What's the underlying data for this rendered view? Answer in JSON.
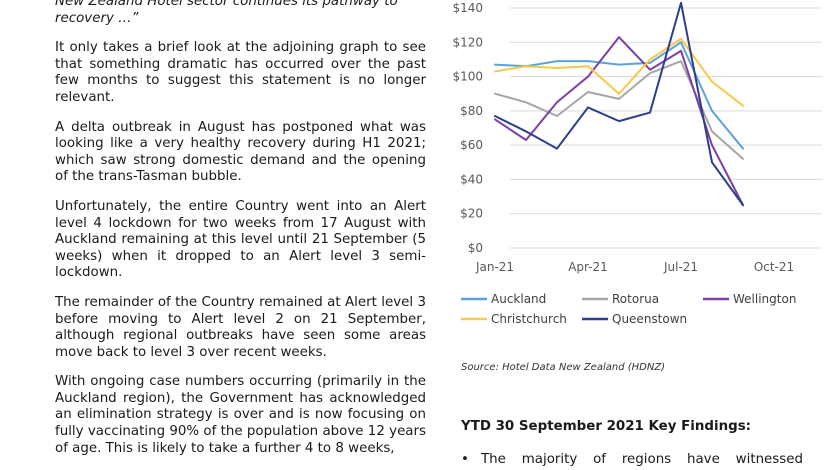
{
  "text": {
    "quote_tail": "New Zealand Hotel sector continues its pathway to recovery …”",
    "p1": "It only takes a brief look at the adjoining graph to see that something dramatic has occurred over the past few months to suggest this statement is no longer relevant.",
    "p2": "A delta outbreak in August has postponed what was looking like a very healthy recovery during H1 2021; which saw strong domestic demand and the opening of the trans-Tasman bubble.",
    "p3": "Unfortunately, the entire Country went into an Alert level 4 lockdown for two weeks from 17 August with Auckland remaining at this level until 21 September (5 weeks)  when it dropped to an Alert level 3 semi-lockdown.",
    "p4": "The remainder of the Country remained at Alert level 3 before moving to Alert level 2 on 21 September, although regional outbreaks have seen some areas move back to level 3 over recent weeks.",
    "p5": "With ongoing case numbers occurring (primarily in the Auckland region), the Government has acknowledged an elimination strategy is over and is now focusing on fully vaccinating 90% of the population above 12 years of age.  This is likely to take a further 4 to 8 weeks,",
    "source": "Source: Hotel Data New Zealand (HDNZ)",
    "findings_title": "YTD 30 September 2021 Key Findings:",
    "bullet1": "The  majority  of  regions  have  witnessed",
    "bullet_symbol": "•"
  },
  "chart_data": {
    "type": "line",
    "title": "",
    "xlabel": "",
    "ylabel": "",
    "ylim": [
      0,
      140
    ],
    "yticks": [
      0,
      20,
      40,
      60,
      80,
      100,
      120,
      140
    ],
    "ytick_labels": [
      "$0",
      "$20",
      "$40",
      "$60",
      "$80",
      "$100",
      "$120",
      "$140"
    ],
    "x": [
      "Jan-21",
      "Feb-21",
      "Mar-21",
      "Apr-21",
      "May-21",
      "Jun-21",
      "Jul-21",
      "Aug-21",
      "Sep-21"
    ],
    "xtick_labels": [
      {
        "label": "Jan-21",
        "index": 0
      },
      {
        "label": "Apr-21",
        "index": 3
      },
      {
        "label": "Jul-21",
        "index": 6
      },
      {
        "label": "Oct-21",
        "index": 9
      }
    ],
    "grid": "horizontal",
    "legend_position": "bottom",
    "series": [
      {
        "name": "Auckland",
        "color": "#5ba3d9",
        "values": [
          107,
          106,
          109,
          109,
          107,
          108,
          120,
          80,
          58
        ]
      },
      {
        "name": "Rotorua",
        "color": "#a6a6a6",
        "values": [
          90,
          85,
          77,
          91,
          87,
          102,
          109,
          68,
          52
        ]
      },
      {
        "name": "Wellington",
        "color": "#7b3fa6",
        "values": [
          75,
          63,
          85,
          100,
          123,
          104,
          115,
          60,
          25
        ]
      },
      {
        "name": "Christchurch",
        "color": "#f7c948",
        "values": [
          103,
          106,
          105,
          106,
          90,
          110,
          122,
          97,
          83
        ]
      },
      {
        "name": "Queenstown",
        "color": "#2c3e8c",
        "values": [
          77,
          68,
          58,
          82,
          74,
          79,
          143,
          50,
          25
        ]
      }
    ]
  }
}
